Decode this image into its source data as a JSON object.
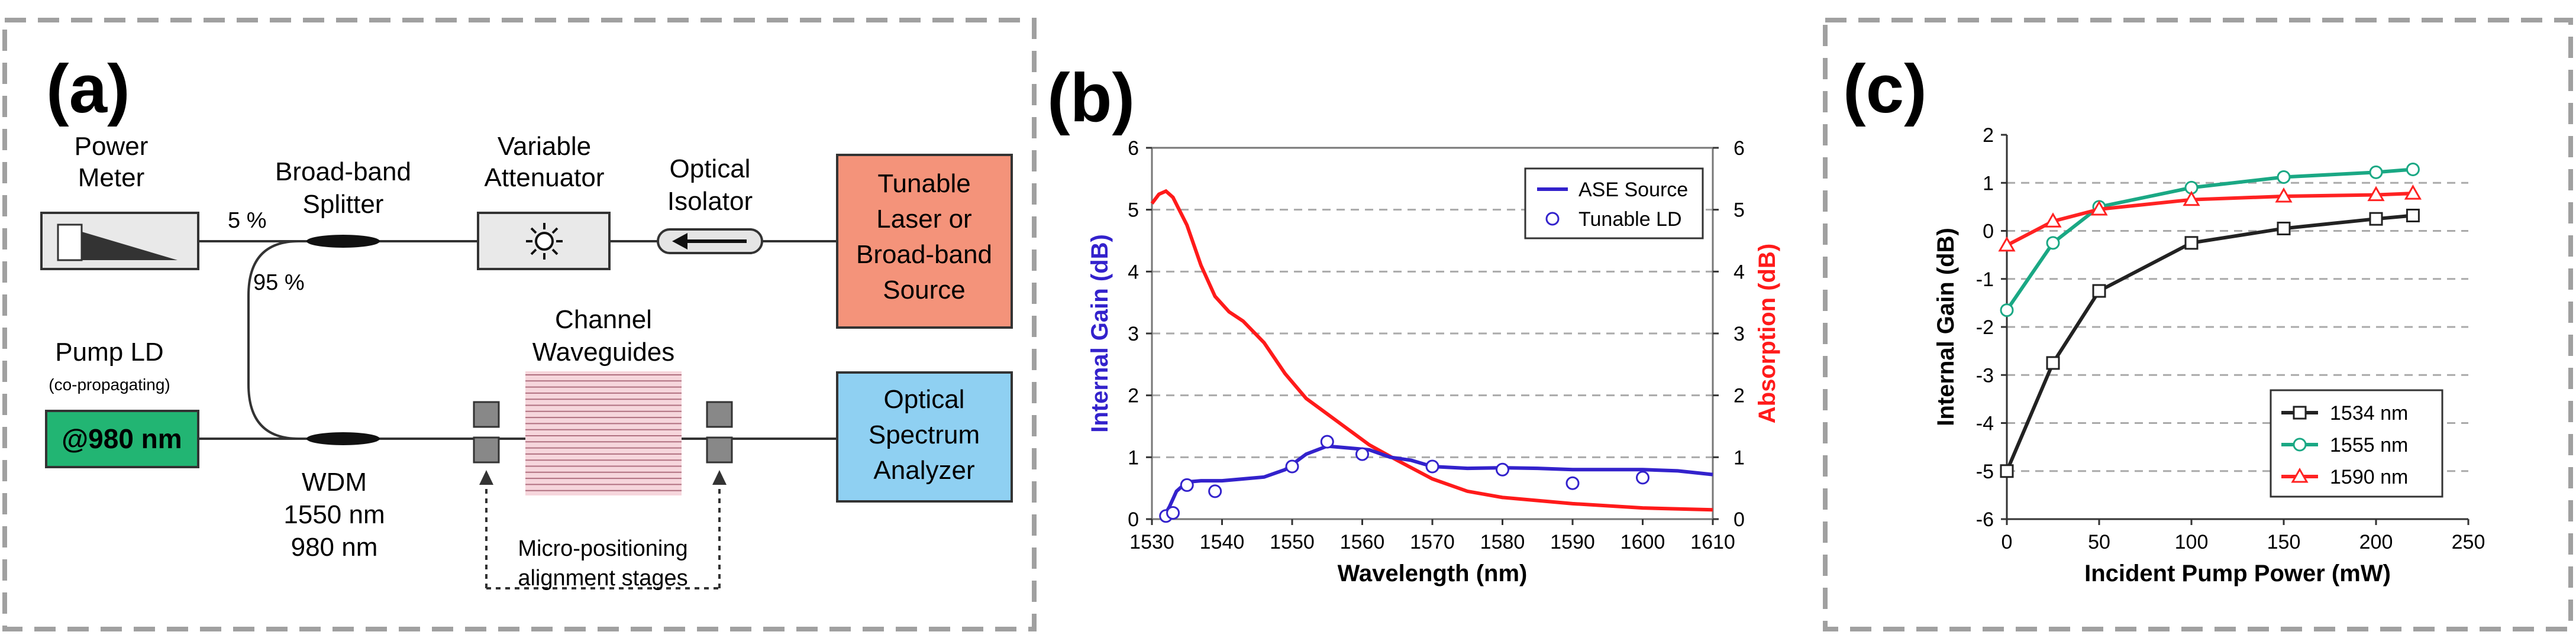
{
  "panels": {
    "a": {
      "label": "(a)",
      "power_meter": [
        "Power",
        "Meter"
      ],
      "splitter": [
        "Broad-band",
        "Splitter"
      ],
      "attenuator": [
        "Variable",
        "Attenuator"
      ],
      "isolator": [
        "Optical",
        "Isolator"
      ],
      "source": [
        "Tunable",
        "Laser or",
        "Broad-band",
        "Source"
      ],
      "pct_5": "5 %",
      "pct_95": "95 %",
      "pump": [
        "Pump LD",
        "(co-propagating)"
      ],
      "pump_box": "@980 nm",
      "wdm": [
        "WDM",
        "1550 nm",
        "980 nm"
      ],
      "channel": [
        "Channel",
        "Waveguides"
      ],
      "osa": [
        "Optical",
        "Spectrum",
        "Analyzer"
      ],
      "stages": [
        "Micro-positioning",
        "alignment stages"
      ]
    },
    "b": {
      "label": "(b)"
    },
    "c": {
      "label": "(c)"
    }
  },
  "colors": {
    "source_fill": "#f4937a",
    "osa_fill": "#8fd0f2",
    "pump_fill": "#22b573",
    "ase_line": "#3322cc",
    "absorption_line": "#ff1a1a",
    "s1534": "#222222",
    "s1555": "#1aa884",
    "s1590": "#ff2222"
  },
  "chart_data": [
    {
      "type": "line",
      "title": "",
      "xlabel": "Wavelength (nm)",
      "ylabel": "Internal Gain (dB)",
      "ylabel_right": "Absorption (dB)",
      "xlim": [
        1530,
        1610
      ],
      "ylim": [
        0,
        6
      ],
      "ylim_right": [
        0,
        6
      ],
      "xticks": [
        1530,
        1540,
        1550,
        1560,
        1570,
        1580,
        1590,
        1600,
        1610
      ],
      "yticks": [
        0,
        1,
        2,
        3,
        4,
        5,
        6
      ],
      "yticks_right": [
        0,
        1,
        2,
        3,
        4,
        5,
        6
      ],
      "legend": [
        "ASE Source",
        "Tunable LD"
      ],
      "legend_position": "top-right",
      "grid": "horizontal-dashed",
      "series": [
        {
          "name": "ASE Source",
          "axis": "left",
          "style": "line",
          "x": [
            1531.5,
            1532.5,
            1533.5,
            1535,
            1537,
            1540,
            1543,
            1546,
            1549,
            1552,
            1555,
            1558,
            1561,
            1564,
            1567,
            1570,
            1575,
            1580,
            1585,
            1590,
            1595,
            1600,
            1605,
            1610
          ],
          "y": [
            0.0,
            0.2,
            0.45,
            0.6,
            0.62,
            0.62,
            0.65,
            0.68,
            0.8,
            1.05,
            1.18,
            1.15,
            1.12,
            1.0,
            0.95,
            0.85,
            0.82,
            0.83,
            0.82,
            0.8,
            0.8,
            0.8,
            0.78,
            0.72
          ]
        },
        {
          "name": "Tunable LD",
          "axis": "left",
          "style": "markers",
          "x": [
            1532,
            1533,
            1535,
            1539,
            1550,
            1555,
            1560,
            1570,
            1580,
            1590,
            1600
          ],
          "y": [
            0.05,
            0.1,
            0.55,
            0.45,
            0.85,
            1.25,
            1.05,
            0.85,
            0.8,
            0.58,
            0.67
          ]
        },
        {
          "name": "Absorption",
          "axis": "right",
          "style": "line",
          "x": [
            1530,
            1531,
            1532,
            1533,
            1535,
            1537,
            1539,
            1541,
            1543,
            1546,
            1549,
            1552,
            1555,
            1558,
            1561,
            1565,
            1570,
            1575,
            1580,
            1590,
            1600,
            1610
          ],
          "y": [
            5.1,
            5.25,
            5.3,
            5.2,
            4.75,
            4.1,
            3.6,
            3.35,
            3.2,
            2.85,
            2.35,
            1.95,
            1.7,
            1.45,
            1.2,
            0.95,
            0.65,
            0.45,
            0.35,
            0.25,
            0.18,
            0.15
          ]
        }
      ]
    },
    {
      "type": "line",
      "title": "",
      "xlabel": "Incident Pump Power (mW)",
      "ylabel": "Internal Gain (dB)",
      "xlim": [
        0,
        250
      ],
      "ylim": [
        -6,
        2
      ],
      "xticks": [
        0,
        50,
        100,
        150,
        200,
        250
      ],
      "yticks": [
        -6,
        -5,
        -4,
        -3,
        -2,
        -1,
        0,
        1,
        2
      ],
      "legend": [
        "1534 nm",
        "1555 nm",
        "1590 nm"
      ],
      "legend_position": "bottom-right",
      "grid": "horizontal-dashed",
      "series": [
        {
          "name": "1534 nm",
          "marker": "square",
          "x": [
            0,
            25,
            50,
            100,
            150,
            200,
            220
          ],
          "y": [
            -5.0,
            -2.75,
            -1.25,
            -0.25,
            0.05,
            0.25,
            0.32
          ]
        },
        {
          "name": "1555 nm",
          "marker": "circle",
          "x": [
            0,
            25,
            50,
            100,
            150,
            200,
            220
          ],
          "y": [
            -1.65,
            -0.25,
            0.5,
            0.9,
            1.12,
            1.22,
            1.28
          ]
        },
        {
          "name": "1590 nm",
          "marker": "triangle",
          "x": [
            0,
            25,
            50,
            100,
            150,
            200,
            220
          ],
          "y": [
            -0.3,
            0.2,
            0.45,
            0.65,
            0.72,
            0.75,
            0.78
          ]
        }
      ]
    }
  ]
}
